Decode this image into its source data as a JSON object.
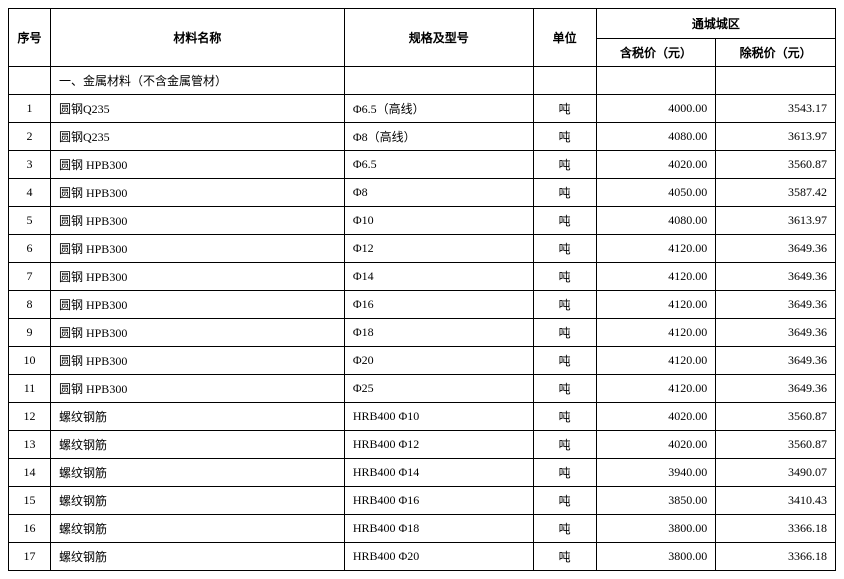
{
  "table": {
    "headers": {
      "seq": "序号",
      "name": "材料名称",
      "spec": "规格及型号",
      "unit": "单位",
      "region": "通城城区",
      "price_tax": "含税价（元）",
      "price_notax": "除税价（元）"
    },
    "section_title": "一、金属材料（不含金属管材）",
    "rows": [
      {
        "seq": "1",
        "name": "圆钢Q235",
        "spec": "Φ6.5（高线）",
        "unit": "吨",
        "p1": "4000.00",
        "p2": "3543.17"
      },
      {
        "seq": "2",
        "name": "圆钢Q235",
        "spec": "Φ8（高线）",
        "unit": "吨",
        "p1": "4080.00",
        "p2": "3613.97"
      },
      {
        "seq": "3",
        "name": "圆钢 HPB300",
        "spec": "Φ6.5",
        "unit": "吨",
        "p1": "4020.00",
        "p2": "3560.87"
      },
      {
        "seq": "4",
        "name": "圆钢 HPB300",
        "spec": "Φ8",
        "unit": "吨",
        "p1": "4050.00",
        "p2": "3587.42"
      },
      {
        "seq": "5",
        "name": "圆钢 HPB300",
        "spec": "Φ10",
        "unit": "吨",
        "p1": "4080.00",
        "p2": "3613.97"
      },
      {
        "seq": "6",
        "name": "圆钢 HPB300",
        "spec": "Φ12",
        "unit": "吨",
        "p1": "4120.00",
        "p2": "3649.36"
      },
      {
        "seq": "7",
        "name": "圆钢 HPB300",
        "spec": "Φ14",
        "unit": "吨",
        "p1": "4120.00",
        "p2": "3649.36"
      },
      {
        "seq": "8",
        "name": "圆钢 HPB300",
        "spec": "Φ16",
        "unit": "吨",
        "p1": "4120.00",
        "p2": "3649.36"
      },
      {
        "seq": "9",
        "name": "圆钢 HPB300",
        "spec": "Φ18",
        "unit": "吨",
        "p1": "4120.00",
        "p2": "3649.36"
      },
      {
        "seq": "10",
        "name": "圆钢 HPB300",
        "spec": "Φ20",
        "unit": "吨",
        "p1": "4120.00",
        "p2": "3649.36"
      },
      {
        "seq": "11",
        "name": "圆钢 HPB300",
        "spec": "Φ25",
        "unit": "吨",
        "p1": "4120.00",
        "p2": "3649.36"
      },
      {
        "seq": "12",
        "name": "螺纹钢筋",
        "spec": "HRB400 Φ10",
        "unit": "吨",
        "p1": "4020.00",
        "p2": "3560.87"
      },
      {
        "seq": "13",
        "name": "螺纹钢筋",
        "spec": "HRB400 Φ12",
        "unit": "吨",
        "p1": "4020.00",
        "p2": "3560.87"
      },
      {
        "seq": "14",
        "name": "螺纹钢筋",
        "spec": "HRB400 Φ14",
        "unit": "吨",
        "p1": "3940.00",
        "p2": "3490.07"
      },
      {
        "seq": "15",
        "name": "螺纹钢筋",
        "spec": "HRB400 Φ16",
        "unit": "吨",
        "p1": "3850.00",
        "p2": "3410.43"
      },
      {
        "seq": "16",
        "name": "螺纹钢筋",
        "spec": "HRB400 Φ18",
        "unit": "吨",
        "p1": "3800.00",
        "p2": "3366.18"
      },
      {
        "seq": "17",
        "name": "螺纹钢筋",
        "spec": "HRB400 Φ20",
        "unit": "吨",
        "p1": "3800.00",
        "p2": "3366.18"
      }
    ],
    "col_widths": {
      "seq": 40,
      "name": 280,
      "spec": 180,
      "unit": 60,
      "price": 114
    },
    "colors": {
      "border": "#000000",
      "background": "#ffffff",
      "text": "#000000"
    },
    "font": {
      "family": "SimSun",
      "size_pt": 9
    }
  }
}
